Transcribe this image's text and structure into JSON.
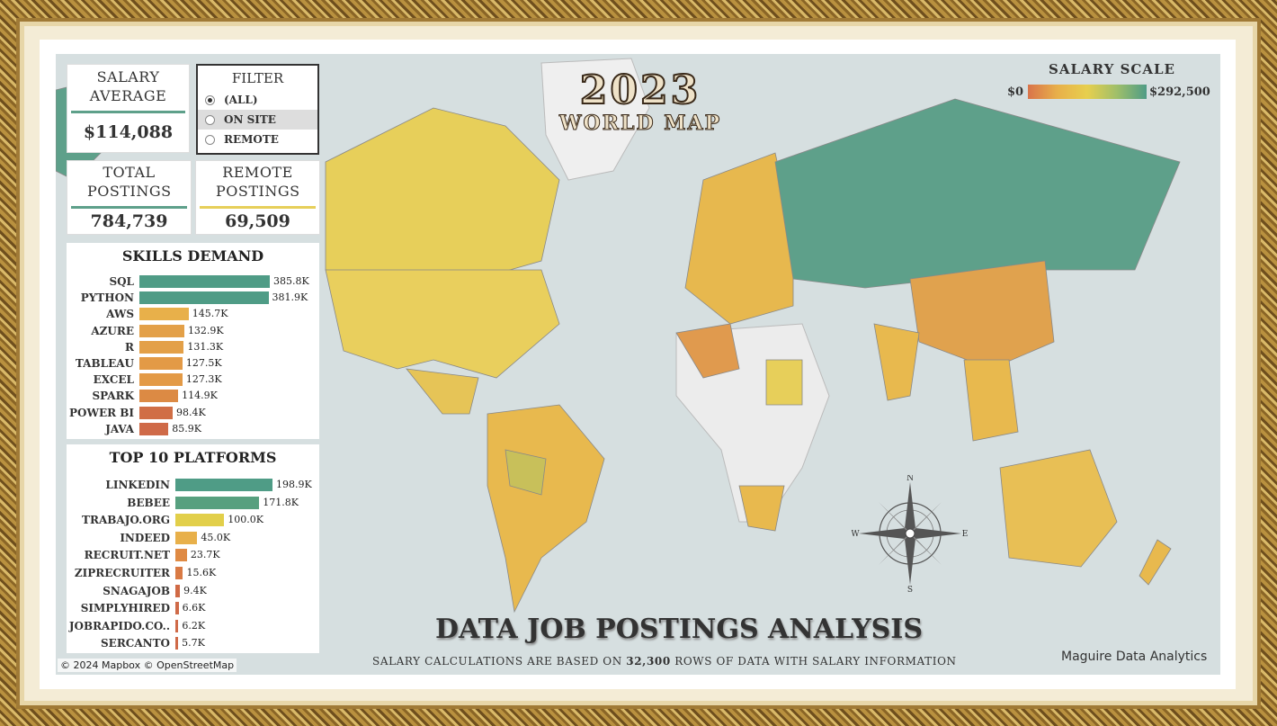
{
  "kpis": {
    "salary_average_title": "SALARY AVERAGE",
    "salary_average_value": "$114,088",
    "total_postings_title": "TOTAL POSTINGS",
    "total_postings_value": "784,739",
    "remote_postings_title": "REMOTE POSTINGS",
    "remote_postings_value": "69,509"
  },
  "filter": {
    "title": "FILTER",
    "options": [
      {
        "label": "(ALL)",
        "selected": true
      },
      {
        "label": "ON SITE",
        "selected": false
      },
      {
        "label": "REMOTE",
        "selected": false
      }
    ]
  },
  "title_art": {
    "year": "2023",
    "subtitle": "WORLD MAP"
  },
  "salary_scale": {
    "title": "SALARY SCALE",
    "min_label": "$0",
    "max_label": "$292,500",
    "min_color": "#d9744a",
    "max_color": "#4f9c86"
  },
  "chart_data": [
    {
      "type": "bar",
      "title": "SKILLS DEMAND",
      "categories": [
        "SQL",
        "PYTHON",
        "AWS",
        "AZURE",
        "R",
        "TABLEAU",
        "EXCEL",
        "SPARK",
        "POWER BI",
        "JAVA"
      ],
      "values": [
        385800,
        381900,
        145700,
        132900,
        131300,
        127500,
        127300,
        114900,
        98400,
        85900
      ],
      "labels": [
        "385.8K",
        "381.9K",
        "145.7K",
        "132.9K",
        "131.3K",
        "127.5K",
        "127.3K",
        "114.9K",
        "98.4K",
        "85.9K"
      ],
      "colors": [
        "#4f9c86",
        "#4f9c86",
        "#e8b04a",
        "#e3a048",
        "#e3a048",
        "#e39a46",
        "#e39a46",
        "#dc8a44",
        "#d06e45",
        "#cf6a48"
      ]
    },
    {
      "type": "bar",
      "title": "TOP 10 PLATFORMS",
      "categories": [
        "LINKEDIN",
        "BEBEE",
        "TRABAJO.ORG",
        "INDEED",
        "RECRUIT.NET",
        "ZIPRECRUITER",
        "SNAGAJOB",
        "SIMPLYHIRED",
        "JOBRAPIDO.CO..",
        "SERCANTO"
      ],
      "values": [
        198900,
        171800,
        100000,
        45000,
        23700,
        15600,
        9400,
        6600,
        6200,
        5700
      ],
      "labels": [
        "198.9K",
        "171.8K",
        "100.0K",
        "45.0K",
        "23.7K",
        "15.6K",
        "9.4K",
        "6.6K",
        "6.2K",
        "5.7K"
      ],
      "colors": [
        "#4f9c86",
        "#57a07f",
        "#e2cf4a",
        "#e8b04a",
        "#df8a44",
        "#d97a44",
        "#d06a45",
        "#cf6a48",
        "#cf6a48",
        "#cf6a48"
      ]
    }
  ],
  "main_title": "DATA JOB POSTINGS ANALYSIS",
  "footnote": {
    "prefix": "SALARY CALCULATIONS ARE BASED ON",
    "rows": "32,300",
    "suffix": "ROWS OF DATA WITH SALARY INFORMATION"
  },
  "credit": "Maguire Data Analytics",
  "map_attribution": "© 2024 Mapbox © OpenStreetMap",
  "compass": {
    "n": "N",
    "s": "S",
    "e": "E",
    "w": "W"
  }
}
